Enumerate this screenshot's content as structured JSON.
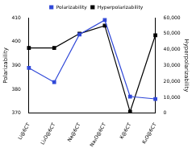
{
  "chart_data": {
    "type": "line",
    "categories": [
      "Li@6CT",
      "Li₃O@6CT",
      "Na@6CT",
      "Na₃O@6CT",
      "K@6CT",
      "K₃O@6CT"
    ],
    "y_label": "Polarizability",
    "y2_label": "Hyperpolarizability",
    "series": [
      {
        "name": "Polarizability",
        "color": "#3048d8",
        "marker": "square",
        "values": [
          389,
          383,
          403,
          409,
          377,
          376
        ]
      },
      {
        "name": "Hyperpolarizability",
        "color": "#000000",
        "marker": "square",
        "axis": "y2",
        "values": [
          41000,
          41000,
          50000,
          55000,
          1000,
          49000
        ]
      }
    ],
    "ylim": [
      370,
      410
    ],
    "yticks": [
      370,
      380,
      390,
      400,
      410
    ],
    "y2lim": [
      0,
      60000
    ],
    "y2ticks": [
      0,
      10000,
      20000,
      30000,
      40000,
      50000,
      60000
    ],
    "legend": "top",
    "grid": false
  }
}
